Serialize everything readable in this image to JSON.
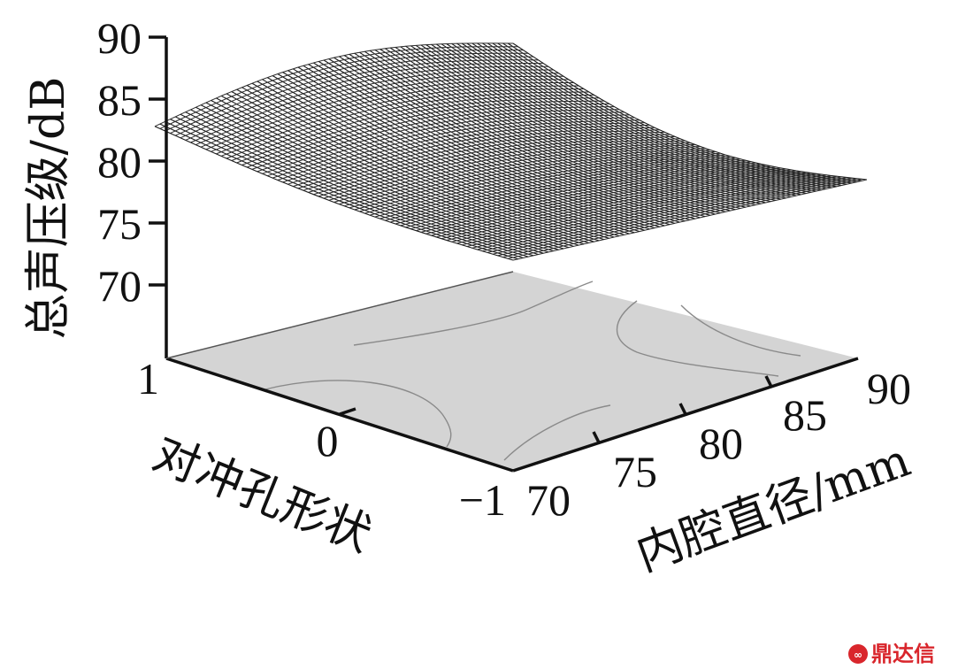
{
  "chart_data": {
    "type": "surface",
    "zlabel": "总声压级/dB",
    "xlabel": "内腔直径/mm",
    "ylabel": "对冲孔形状",
    "z_ticks": [
      "90",
      "85",
      "80",
      "75",
      "70"
    ],
    "x_ticks": [
      "70",
      "75",
      "80",
      "85",
      "90"
    ],
    "y_ticks": [
      "1",
      "0",
      "−1"
    ],
    "zlim": [
      70,
      90
    ],
    "xlim": [
      70,
      90
    ],
    "ylim": [
      -1,
      1
    ],
    "surface_corners": [
      {
        "x": 70,
        "y": 1,
        "z": 82.8
      },
      {
        "x": 90,
        "y": 1,
        "z": 88.5
      },
      {
        "x": 90,
        "y": -1,
        "z": 79.5
      },
      {
        "x": 70,
        "y": -1,
        "z": 73.5
      }
    ],
    "contour_projection": true,
    "grid": false
  },
  "watermark": {
    "logo_text": "鼎达信",
    "color": "#d9262c"
  }
}
